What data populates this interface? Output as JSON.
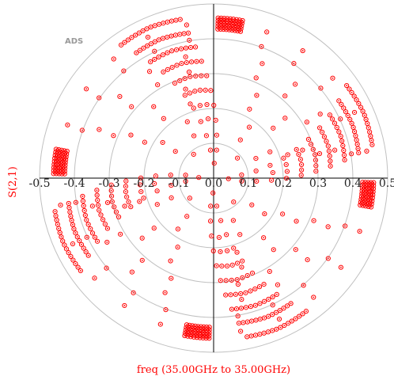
{
  "app": {
    "logo": "ADS"
  },
  "chart_data": {
    "type": "scatter",
    "projection": "polar",
    "ylabel": "S(2,1)",
    "xlabel": "freq (35.00GHz to 35.00GHz)",
    "radial_ticks": [
      "-0.5",
      "-0.4",
      "-0.3",
      "-0.2",
      "-0.1",
      "0.0",
      "0.1",
      "0.2",
      "0.3",
      "0.4",
      "0.5"
    ],
    "radial_range": [
      0,
      0.5
    ],
    "rings": [
      0.1,
      0.2,
      0.3,
      0.4,
      0.5
    ],
    "marker_color": "#ff0000",
    "grid_color": "#c0c0c0",
    "axis_color": "#000000",
    "series": [
      {
        "arms": [
          {
            "dir": "upper-right",
            "angle_deg": 85,
            "max_r": 0.47
          },
          {
            "dir": "right",
            "angle_deg": -5,
            "max_r": 0.47
          },
          {
            "dir": "lower-left",
            "angle_deg": 265,
            "max_r": 0.47
          },
          {
            "dir": "left",
            "angle_deg": 175,
            "max_r": 0.47
          }
        ]
      }
    ]
  }
}
